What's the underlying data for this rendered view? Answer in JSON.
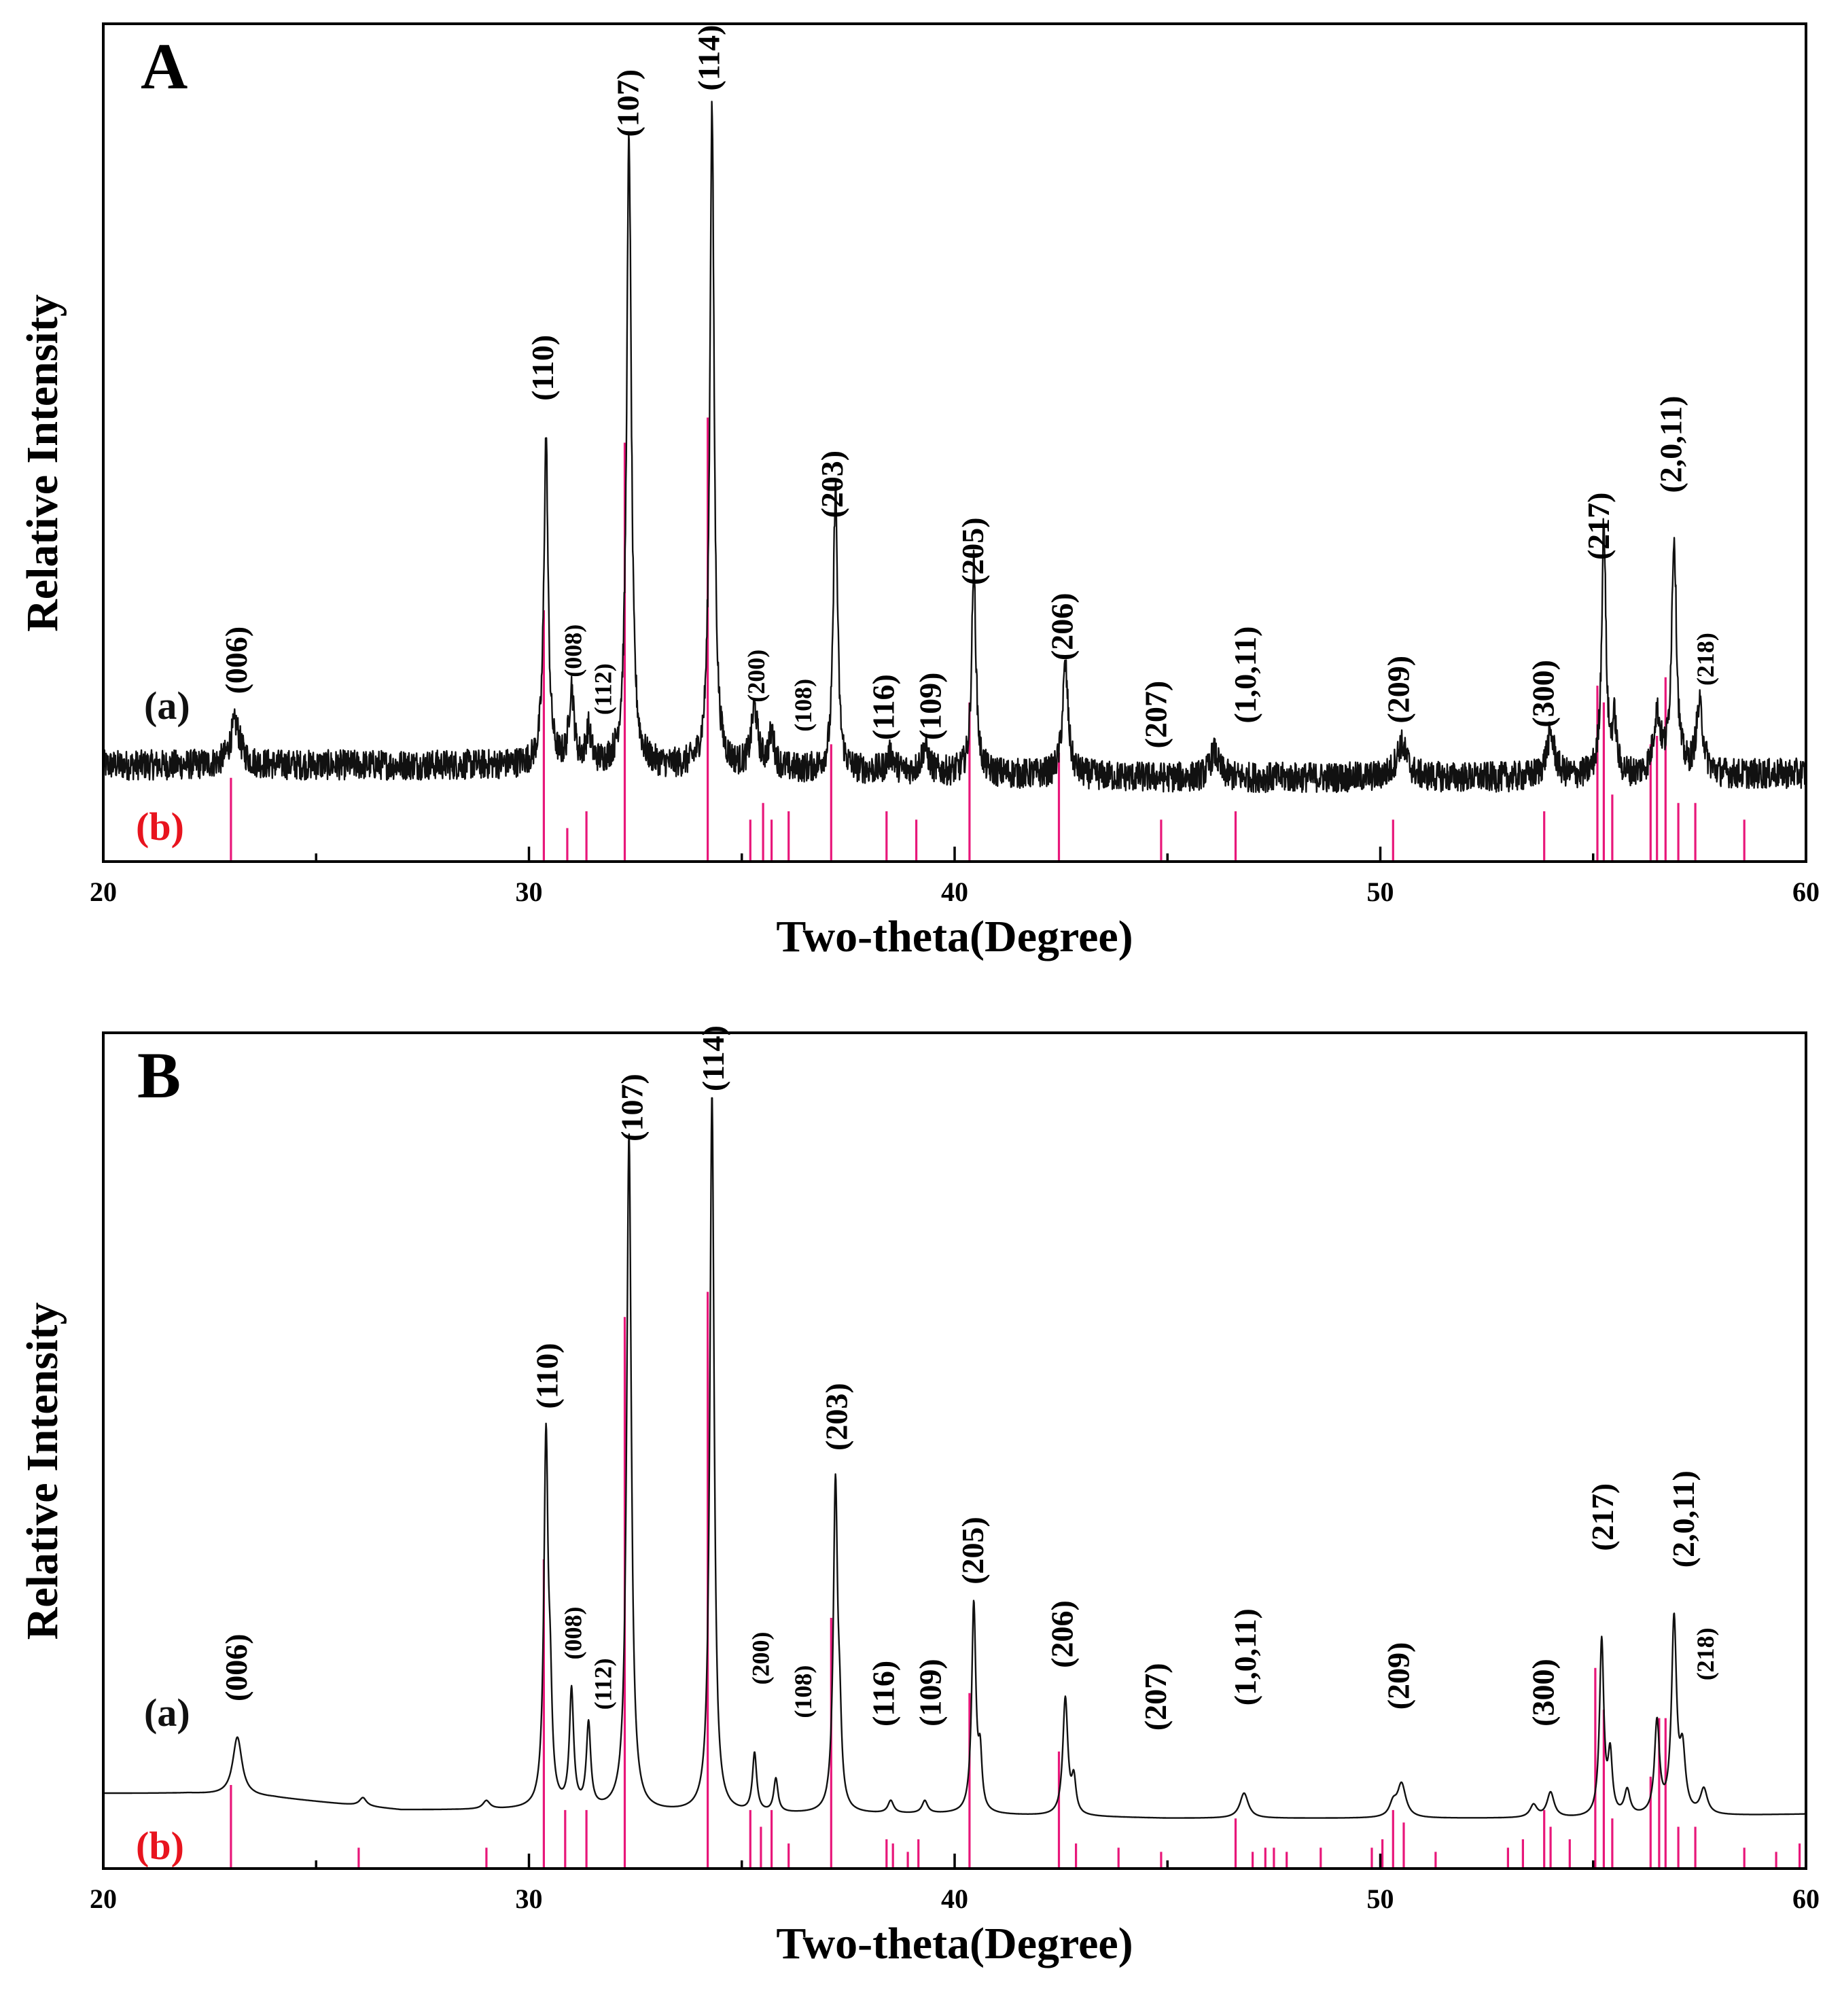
{
  "colors": {
    "pattern": "#111111",
    "reference": "#e8177a",
    "axis": "#000000",
    "label_b": "#e8141e"
  },
  "chart_data": [
    {
      "type": "line",
      "panel": "A",
      "panel_label": "A",
      "xlabel": "Two-theta(Degree)",
      "ylabel": "Relative Intensity",
      "xlim": [
        20,
        60
      ],
      "ylim": [
        0,
        1
      ],
      "x_ticks": [
        20,
        30,
        40,
        50,
        60
      ],
      "grid": false,
      "legend": [
        {
          "label": "(a)",
          "color": "#111111"
        },
        {
          "label": "(b)",
          "color": "#e8141e"
        }
      ],
      "noise": 0.018,
      "baseline_points": [
        [
          20,
          0.115
        ],
        [
          25,
          0.115
        ],
        [
          30,
          0.115
        ],
        [
          35,
          0.11
        ],
        [
          40,
          0.105
        ],
        [
          45,
          0.1
        ],
        [
          50,
          0.1
        ],
        [
          55,
          0.1
        ],
        [
          60,
          0.105
        ]
      ],
      "peaks": [
        [
          23.1,
          0.05,
          0.14
        ],
        [
          30.4,
          0.39,
          0.06
        ],
        [
          31.0,
          0.09,
          0.07
        ],
        [
          31.4,
          0.04,
          0.07
        ],
        [
          32.35,
          0.75,
          0.065
        ],
        [
          34.3,
          0.79,
          0.06
        ],
        [
          35.3,
          0.07,
          0.09
        ],
        [
          35.7,
          0.04,
          0.08
        ],
        [
          37.2,
          0.34,
          0.06
        ],
        [
          38.5,
          0.02,
          0.1
        ],
        [
          39.3,
          0.03,
          0.1
        ],
        [
          40.45,
          0.25,
          0.06
        ],
        [
          42.6,
          0.13,
          0.08
        ],
        [
          46.1,
          0.03,
          0.12
        ],
        [
          50.5,
          0.04,
          0.15
        ],
        [
          54.0,
          0.05,
          0.12
        ],
        [
          55.25,
          0.3,
          0.06
        ],
        [
          55.5,
          0.06,
          0.06
        ],
        [
          56.5,
          0.07,
          0.1
        ],
        [
          56.9,
          0.28,
          0.07
        ],
        [
          57.5,
          0.08,
          0.1
        ]
      ],
      "reference_lines": [
        [
          23.0,
          0.1
        ],
        [
          30.35,
          0.3
        ],
        [
          30.9,
          0.04
        ],
        [
          31.35,
          0.06
        ],
        [
          32.25,
          0.5
        ],
        [
          34.2,
          0.53
        ],
        [
          35.2,
          0.05
        ],
        [
          35.5,
          0.07
        ],
        [
          35.7,
          0.05
        ],
        [
          36.1,
          0.06
        ],
        [
          37.1,
          0.14
        ],
        [
          38.4,
          0.06
        ],
        [
          39.1,
          0.05
        ],
        [
          40.35,
          0.19
        ],
        [
          42.45,
          0.13
        ],
        [
          44.85,
          0.05
        ],
        [
          46.6,
          0.06
        ],
        [
          50.3,
          0.05
        ],
        [
          53.85,
          0.06
        ],
        [
          55.1,
          0.21
        ],
        [
          55.25,
          0.19
        ],
        [
          55.45,
          0.08
        ],
        [
          56.35,
          0.14
        ],
        [
          56.5,
          0.15
        ],
        [
          56.7,
          0.22
        ],
        [
          57.0,
          0.07
        ],
        [
          57.4,
          0.07
        ],
        [
          58.55,
          0.05
        ]
      ],
      "annotations": [
        {
          "text": "(006)",
          "x": 23.2,
          "y": 0.2
        },
        {
          "text": "(110)",
          "x": 30.4,
          "y": 0.55
        },
        {
          "text": "(008)",
          "x": 31.1,
          "y": 0.22
        },
        {
          "text": "(112)",
          "x": 31.8,
          "y": 0.175
        },
        {
          "text": "(107)",
          "x": 32.4,
          "y": 0.865
        },
        {
          "text": "(114)",
          "x": 34.3,
          "y": 0.92
        },
        {
          "text": "(200)",
          "x": 35.4,
          "y": 0.19
        },
        {
          "text": "(108)",
          "x": 36.5,
          "y": 0.155
        },
        {
          "text": "(116)",
          "x": 38.4,
          "y": 0.145
        },
        {
          "text": "(109)",
          "x": 39.5,
          "y": 0.145
        },
        {
          "text": "(203)",
          "x": 37.2,
          "y": 0.41
        },
        {
          "text": "(205)",
          "x": 40.5,
          "y": 0.33
        },
        {
          "text": "(206)",
          "x": 42.6,
          "y": 0.24
        },
        {
          "text": "(207)",
          "x": 44.8,
          "y": 0.135
        },
        {
          "text": "(1,0,11)",
          "x": 46.9,
          "y": 0.165
        },
        {
          "text": "(209)",
          "x": 50.5,
          "y": 0.165
        },
        {
          "text": "(300)",
          "x": 53.9,
          "y": 0.16
        },
        {
          "text": "(217)",
          "x": 55.2,
          "y": 0.36
        },
        {
          "text": "(2,0,11)",
          "x": 56.9,
          "y": 0.44
        },
        {
          "text": "(218)",
          "x": 57.7,
          "y": 0.21
        }
      ]
    },
    {
      "type": "line",
      "panel": "B",
      "panel_label": "B",
      "xlabel": "Two-theta(Degree)",
      "ylabel": "Relative Intensity",
      "xlim": [
        20,
        60
      ],
      "ylim": [
        0,
        1
      ],
      "x_ticks": [
        20,
        30,
        40,
        50,
        60
      ],
      "grid": false,
      "legend": [
        {
          "label": "(a)",
          "color": "#111111"
        },
        {
          "label": "(b)",
          "color": "#e8141e"
        }
      ],
      "noise": 0.0,
      "baseline_points": [
        [
          20,
          0.09
        ],
        [
          22,
          0.09
        ],
        [
          24,
          0.085
        ],
        [
          27,
          0.07
        ],
        [
          30,
          0.07
        ],
        [
          35,
          0.065
        ],
        [
          40,
          0.065
        ],
        [
          45,
          0.06
        ],
        [
          50,
          0.06
        ],
        [
          55,
          0.06
        ],
        [
          60,
          0.065
        ]
      ],
      "peaks": [
        [
          23.15,
          0.07,
          0.13
        ],
        [
          26.1,
          0.01,
          0.1
        ],
        [
          29.0,
          0.01,
          0.1
        ],
        [
          30.4,
          0.44,
          0.06
        ],
        [
          30.5,
          0.1,
          0.05
        ],
        [
          31.0,
          0.14,
          0.06
        ],
        [
          31.4,
          0.1,
          0.06
        ],
        [
          32.35,
          0.81,
          0.065
        ],
        [
          34.3,
          0.86,
          0.06
        ],
        [
          35.3,
          0.07,
          0.06
        ],
        [
          35.8,
          0.04,
          0.06
        ],
        [
          37.2,
          0.39,
          0.06
        ],
        [
          37.3,
          0.08,
          0.05
        ],
        [
          38.5,
          0.015,
          0.08
        ],
        [
          39.3,
          0.015,
          0.08
        ],
        [
          40.45,
          0.25,
          0.06
        ],
        [
          40.6,
          0.06,
          0.05
        ],
        [
          42.6,
          0.14,
          0.07
        ],
        [
          42.8,
          0.04,
          0.06
        ],
        [
          46.8,
          0.03,
          0.12
        ],
        [
          50.5,
          0.04,
          0.12
        ],
        [
          50.3,
          0.015,
          0.1
        ],
        [
          53.6,
          0.015,
          0.1
        ],
        [
          54.0,
          0.03,
          0.1
        ],
        [
          55.2,
          0.21,
          0.06
        ],
        [
          55.4,
          0.07,
          0.06
        ],
        [
          55.8,
          0.03,
          0.08
        ],
        [
          56.5,
          0.11,
          0.07
        ],
        [
          56.9,
          0.23,
          0.07
        ],
        [
          57.1,
          0.07,
          0.08
        ],
        [
          57.6,
          0.03,
          0.1
        ]
      ],
      "reference_lines": [
        [
          23.0,
          0.1
        ],
        [
          26.0,
          0.025
        ],
        [
          29.0,
          0.025
        ],
        [
          30.35,
          0.37
        ],
        [
          30.85,
          0.07
        ],
        [
          31.35,
          0.07
        ],
        [
          32.25,
          0.66
        ],
        [
          34.2,
          0.69
        ],
        [
          35.2,
          0.07
        ],
        [
          35.45,
          0.05
        ],
        [
          35.7,
          0.07
        ],
        [
          36.1,
          0.03
        ],
        [
          37.1,
          0.3
        ],
        [
          38.4,
          0.035
        ],
        [
          38.55,
          0.03
        ],
        [
          38.9,
          0.02
        ],
        [
          39.15,
          0.035
        ],
        [
          40.35,
          0.21
        ],
        [
          42.45,
          0.14
        ],
        [
          42.85,
          0.03
        ],
        [
          43.85,
          0.025
        ],
        [
          44.85,
          0.02
        ],
        [
          46.6,
          0.06
        ],
        [
          47.0,
          0.02
        ],
        [
          47.3,
          0.025
        ],
        [
          47.5,
          0.025
        ],
        [
          47.8,
          0.02
        ],
        [
          48.6,
          0.025
        ],
        [
          49.8,
          0.025
        ],
        [
          50.05,
          0.035
        ],
        [
          50.3,
          0.07
        ],
        [
          50.55,
          0.055
        ],
        [
          51.3,
          0.02
        ],
        [
          53.0,
          0.025
        ],
        [
          53.35,
          0.035
        ],
        [
          53.85,
          0.07
        ],
        [
          54.0,
          0.05
        ],
        [
          54.45,
          0.035
        ],
        [
          55.05,
          0.24
        ],
        [
          55.25,
          0.19
        ],
        [
          55.45,
          0.06
        ],
        [
          56.35,
          0.11
        ],
        [
          56.55,
          0.18
        ],
        [
          56.7,
          0.18
        ],
        [
          57.0,
          0.05
        ],
        [
          57.4,
          0.05
        ],
        [
          58.55,
          0.025
        ],
        [
          59.3,
          0.02
        ],
        [
          59.85,
          0.03
        ]
      ],
      "annotations": [
        {
          "text": "(006)",
          "x": 23.2,
          "y": 0.2
        },
        {
          "text": "(110)",
          "x": 30.5,
          "y": 0.55
        },
        {
          "text": "(008)",
          "x": 31.1,
          "y": 0.25
        },
        {
          "text": "(112)",
          "x": 31.8,
          "y": 0.19
        },
        {
          "text": "(107)",
          "x": 32.5,
          "y": 0.87
        },
        {
          "text": "(114)",
          "x": 34.4,
          "y": 0.93
        },
        {
          "text": "(200)",
          "x": 35.5,
          "y": 0.22
        },
        {
          "text": "(108)",
          "x": 36.5,
          "y": 0.18
        },
        {
          "text": "(116)",
          "x": 38.4,
          "y": 0.17
        },
        {
          "text": "(109)",
          "x": 39.5,
          "y": 0.17
        },
        {
          "text": "(203)",
          "x": 37.3,
          "y": 0.5
        },
        {
          "text": "(205)",
          "x": 40.5,
          "y": 0.34
        },
        {
          "text": "(206)",
          "x": 42.6,
          "y": 0.24
        },
        {
          "text": "(207)",
          "x": 44.8,
          "y": 0.165
        },
        {
          "text": "(1,0,11)",
          "x": 46.9,
          "y": 0.195
        },
        {
          "text": "(209)",
          "x": 50.5,
          "y": 0.19
        },
        {
          "text": "(300)",
          "x": 53.9,
          "y": 0.17
        },
        {
          "text": "(217)",
          "x": 55.3,
          "y": 0.38
        },
        {
          "text": "(2,0,11)",
          "x": 57.2,
          "y": 0.36
        },
        {
          "text": "(218)",
          "x": 57.7,
          "y": 0.225
        }
      ]
    }
  ]
}
